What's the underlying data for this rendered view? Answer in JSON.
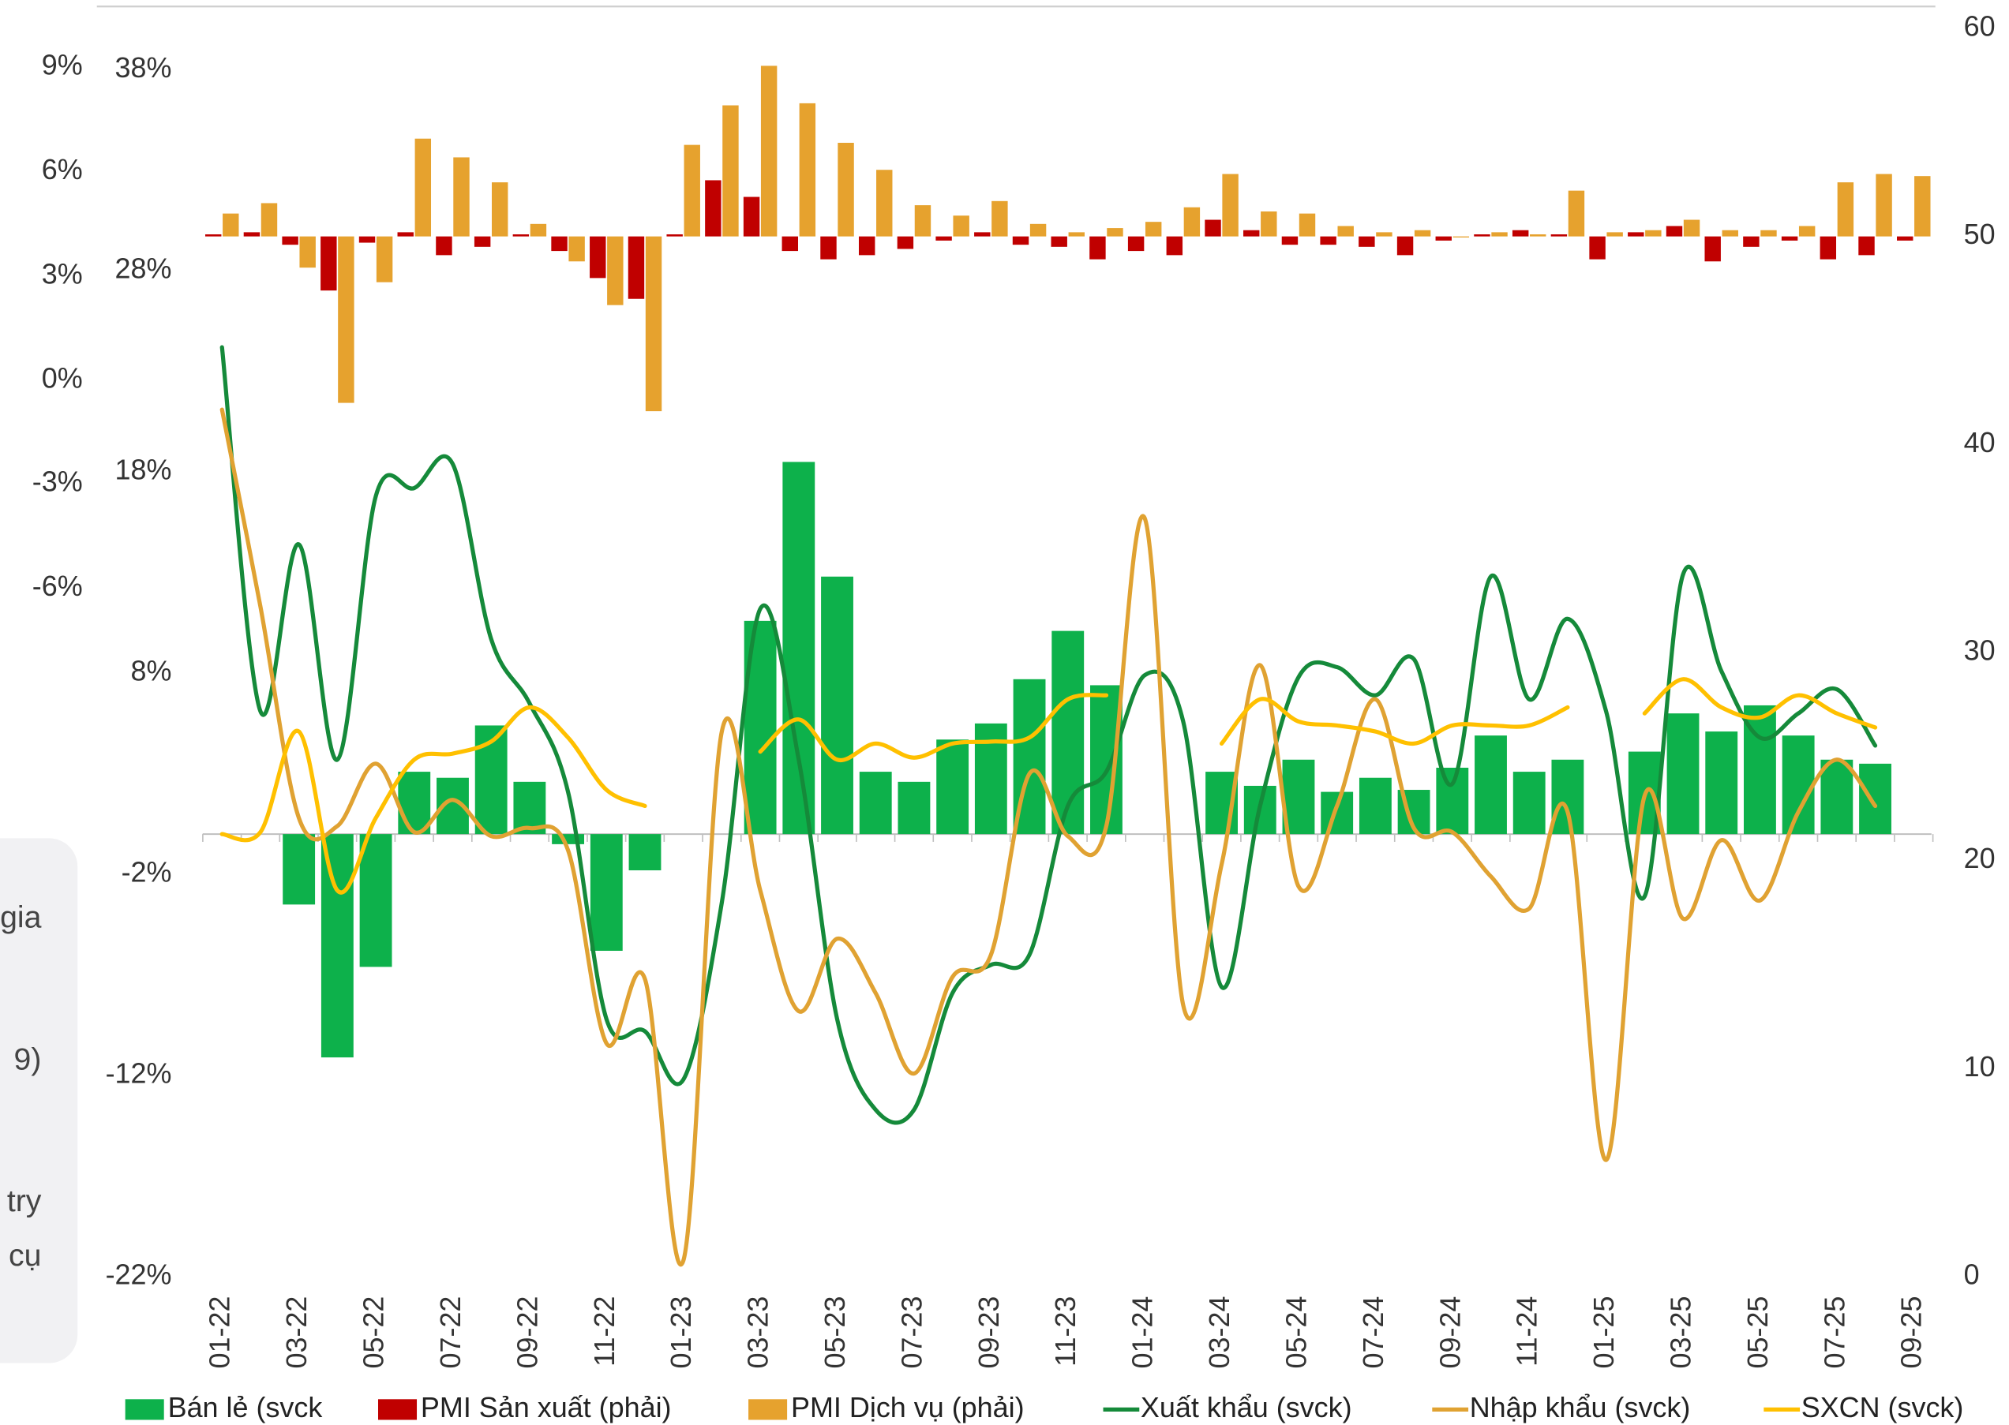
{
  "chart_data": {
    "type": "combo",
    "categories": [
      "01-22",
      null,
      "03-22",
      null,
      "05-22",
      null,
      "07-22",
      null,
      "09-22",
      null,
      "11-22",
      null,
      "01-23",
      null,
      "03-23",
      null,
      "05-23",
      null,
      "07-23",
      null,
      "09-23",
      null,
      "11-23",
      null,
      "01-24",
      null,
      "03-24",
      null,
      "05-24",
      null,
      "07-24",
      null,
      "09-24",
      null,
      "11-24",
      null,
      "01-25",
      null,
      "03-25",
      null,
      "05-25",
      null,
      "07-25",
      null,
      "09-25"
    ],
    "ylim": [
      -22,
      38
    ],
    "yticks": [
      {
        "value": 38,
        "label": "38%"
      },
      {
        "value": 28,
        "label": "28%"
      },
      {
        "value": 18,
        "label": "18%"
      },
      {
        "value": 8,
        "label": "8%"
      },
      {
        "value": -2,
        "label": "-2%"
      },
      {
        "value": -12,
        "label": "-12%"
      },
      {
        "value": -22,
        "label": "-22%"
      }
    ],
    "y2lim": [
      0,
      60
    ],
    "y2ticks": [
      0,
      10,
      20,
      30,
      40,
      50,
      60
    ],
    "y2_baseline": 50,
    "series": [
      {
        "name": "Bán lẻ (svck",
        "type": "bar",
        "color": "#0db14b",
        "values": [
          null,
          null,
          -3.5,
          -11.1,
          -6.6,
          3.1,
          2.8,
          5.4,
          2.6,
          -0.5,
          -5.8,
          -1.8,
          null,
          null,
          10.6,
          18.5,
          12.8,
          3.1,
          2.6,
          4.7,
          5.5,
          7.7,
          10.1,
          7.4,
          null,
          null,
          3.1,
          2.4,
          3.7,
          2.1,
          2.8,
          2.2,
          3.3,
          4.9,
          3.1,
          3.7,
          null,
          4.1,
          6.0,
          5.1,
          6.4,
          4.9,
          3.7,
          3.5,
          null
        ]
      },
      {
        "name": "PMI Sản xuất (phải)",
        "type": "bar",
        "axis": "y2",
        "color": "#c00000",
        "values": [
          50.1,
          50.2,
          49.6,
          47.4,
          49.7,
          50.2,
          49.1,
          49.5,
          50.1,
          49.3,
          48.0,
          47.0,
          50.1,
          52.7,
          51.9,
          49.3,
          48.9,
          49.1,
          49.4,
          49.8,
          50.2,
          49.6,
          49.5,
          48.9,
          49.3,
          49.1,
          50.8,
          50.3,
          49.6,
          49.6,
          49.5,
          49.1,
          49.8,
          50.1,
          50.3,
          50.1,
          48.9,
          50.2,
          50.5,
          48.8,
          49.5,
          49.8,
          48.9,
          49.1,
          49.8
        ]
      },
      {
        "name": "PMI Dịch vụ (phải)",
        "type": "bar",
        "axis": "y2",
        "color": "#e6a22e",
        "values": [
          51.1,
          51.6,
          48.5,
          42.0,
          47.8,
          54.7,
          53.8,
          52.6,
          50.6,
          48.8,
          46.7,
          41.6,
          54.4,
          56.3,
          58.2,
          56.4,
          54.5,
          53.2,
          51.5,
          51.0,
          51.7,
          50.6,
          50.2,
          50.4,
          50.7,
          51.4,
          53.0,
          51.2,
          51.1,
          50.5,
          50.2,
          50.3,
          50.0,
          50.2,
          50.1,
          52.2,
          50.2,
          50.3,
          50.8,
          50.3,
          50.3,
          50.5,
          52.6,
          53.0,
          52.9
        ]
      },
      {
        "name": "Xuất khẩu (svck)",
        "type": "line",
        "color": "#158a3a",
        "values": [
          24.2,
          6.1,
          14.4,
          3.7,
          16.8,
          17.2,
          18.4,
          9.7,
          6.5,
          2.1,
          -9.2,
          -9.8,
          -12.2,
          -3.4,
          11.2,
          3.7,
          -9.2,
          -13.7,
          -13.7,
          -7.9,
          -6.5,
          -6.0,
          1.4,
          3.1,
          7.9,
          5.6,
          -7.6,
          1.4,
          7.8,
          8.3,
          6.9,
          8.7,
          2.5,
          12.8,
          6.7,
          10.7,
          6.1,
          -3.1,
          12.9,
          8.1,
          4.8,
          6.0,
          7.2,
          4.4,
          null
        ]
      },
      {
        "name": "Nhập khẩu (svck)",
        "type": "line",
        "color": "#e0a232",
        "values": [
          21.1,
          11.3,
          0.8,
          0.4,
          3.5,
          0.1,
          1.7,
          -0.1,
          0.3,
          -0.8,
          -10.4,
          -7.2,
          -21.2,
          5.1,
          -2.8,
          -8.8,
          -5.2,
          -7.9,
          -11.9,
          -7.1,
          -6.0,
          3.0,
          -0.1,
          0.4,
          15.7,
          -8.5,
          -1.5,
          8.4,
          -2.6,
          1.4,
          6.7,
          0.3,
          0.1,
          -2.1,
          -3.7,
          1.1,
          -16.2,
          1.9,
          -4.2,
          -0.3,
          -3.3,
          1.1,
          3.7,
          1.4,
          null
        ]
      },
      {
        "name": "SXCN (svck)",
        "type": "line",
        "color": "#ffc000",
        "values": [
          0.0,
          0.1,
          5.1,
          -2.8,
          0.8,
          3.7,
          4.0,
          4.6,
          6.3,
          4.8,
          2.2,
          1.4,
          null,
          null,
          4.1,
          5.7,
          3.7,
          4.5,
          3.8,
          4.5,
          4.6,
          4.8,
          6.7,
          6.9,
          null,
          null,
          4.5,
          6.7,
          5.6,
          5.4,
          5.1,
          4.5,
          5.4,
          5.4,
          5.4,
          6.3,
          null,
          6.0,
          7.7,
          6.3,
          5.8,
          6.9,
          6.0,
          5.3,
          null
        ]
      }
    ]
  },
  "background_axis": {
    "labels": [
      "9%",
      "6%",
      "3%",
      "0%",
      "-3%",
      "-6%"
    ]
  },
  "side_panel": {
    "lines": [
      "gia",
      "9)",
      "try",
      "cụ"
    ]
  }
}
